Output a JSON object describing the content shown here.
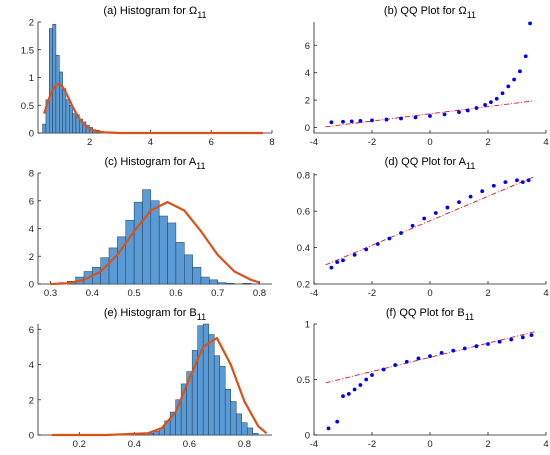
{
  "figure": {
    "colors": {
      "hist_fill": "#5b9bd5",
      "hist_edge": "#1f3a55",
      "pdf_line": "#d95319",
      "qq_points": "#0000ff",
      "qq_ref": "#e0141e"
    }
  },
  "chart_data": [
    {
      "type": "bar",
      "title": "(a) Histogram for Ω",
      "title_sub": "11",
      "xlim": [
        0.3,
        8
      ],
      "ylim": [
        0,
        2
      ],
      "xticks": [
        2,
        4,
        6,
        8
      ],
      "yticks": [
        0,
        0.5,
        1,
        1.5,
        2
      ],
      "ytick_labels": [
        "0",
        "0.5",
        "1",
        "1.5",
        "2"
      ],
      "bin_start": 0.45,
      "bin_width": 0.11,
      "values": [
        0.16,
        0.6,
        1.88,
        1.96,
        1.4,
        1.1,
        0.8,
        0.6,
        0.5,
        0.35,
        0.33,
        0.25,
        0.2,
        0.14,
        0.1,
        0.06,
        0.05,
        0.03,
        0.02,
        0.02
      ],
      "fit_curve": {
        "x": [
          0.5,
          0.6,
          0.7,
          0.8,
          0.9,
          1.0,
          1.1,
          1.2,
          1.3,
          1.4,
          1.5,
          1.6,
          1.8,
          2.0,
          2.2,
          2.5,
          3.0,
          4.0,
          6.0,
          7.7
        ],
        "y": [
          0.35,
          0.52,
          0.68,
          0.8,
          0.87,
          0.88,
          0.84,
          0.75,
          0.64,
          0.52,
          0.41,
          0.31,
          0.16,
          0.07,
          0.03,
          0.01,
          0.0,
          0.0,
          0.0,
          0.0
        ]
      }
    },
    {
      "type": "scatter",
      "title": "(b) QQ Plot for Ω",
      "title_sub": "11",
      "xlim": [
        -4,
        4
      ],
      "ylim": [
        -0.4,
        7.7
      ],
      "xticks": [
        -4,
        -2,
        0,
        2,
        4
      ],
      "yticks": [
        0,
        2,
        4,
        6
      ],
      "ytick_labels": [
        "0",
        "2",
        "4",
        "6"
      ],
      "points": {
        "x": [
          -3.4,
          -3.0,
          -2.7,
          -2.4,
          -2.0,
          -1.5,
          -1.0,
          -0.5,
          0.0,
          0.5,
          1.0,
          1.3,
          1.6,
          1.9,
          2.1,
          2.3,
          2.5,
          2.7,
          2.9,
          3.1,
          3.3,
          3.45
        ],
        "y": [
          0.38,
          0.42,
          0.45,
          0.48,
          0.52,
          0.58,
          0.66,
          0.74,
          0.84,
          0.96,
          1.12,
          1.24,
          1.42,
          1.65,
          1.85,
          2.1,
          2.5,
          3.0,
          3.5,
          4.1,
          5.2,
          7.6
        ]
      },
      "reference": {
        "x": [
          -3.6,
          3.6
        ],
        "y": [
          0.05,
          1.95
        ]
      }
    },
    {
      "type": "bar",
      "title": "(c) Histogram for A",
      "title_sub": "11",
      "xlim": [
        0.27,
        0.83
      ],
      "ylim": [
        0,
        8
      ],
      "xticks": [
        0.3,
        0.4,
        0.5,
        0.6,
        0.7,
        0.8
      ],
      "yticks": [
        0,
        2,
        4,
        6,
        8
      ],
      "ytick_labels": [
        "0",
        "2",
        "4",
        "6",
        "8"
      ],
      "bin_start": 0.3,
      "bin_width": 0.02,
      "values": [
        0.05,
        0.1,
        0.2,
        0.5,
        0.9,
        1.2,
        1.9,
        2.6,
        3.4,
        4.6,
        5.9,
        6.8,
        6.0,
        4.9,
        4.4,
        3.0,
        2.1,
        1.2,
        0.5,
        0.3,
        0.1,
        0.05,
        0.0,
        0.05,
        0.0
      ],
      "fit_curve": {
        "x": [
          0.3,
          0.34,
          0.38,
          0.42,
          0.46,
          0.5,
          0.54,
          0.58,
          0.62,
          0.66,
          0.7,
          0.74,
          0.78,
          0.8
        ],
        "y": [
          0.0,
          0.05,
          0.3,
          0.9,
          2.1,
          3.8,
          5.3,
          5.9,
          5.3,
          3.8,
          2.1,
          0.9,
          0.3,
          0.1
        ]
      }
    },
    {
      "type": "scatter",
      "title": "(d) QQ Plot for A",
      "title_sub": "11",
      "xlim": [
        -4,
        4
      ],
      "ylim": [
        0.2,
        0.81
      ],
      "xticks": [
        -4,
        -2,
        0,
        2,
        4
      ],
      "yticks": [
        0.2,
        0.4,
        0.6,
        0.8
      ],
      "ytick_labels": [
        "0.2",
        "0.4",
        "0.6",
        "0.8"
      ],
      "points": {
        "x": [
          -3.4,
          -3.2,
          -3.0,
          -2.6,
          -2.2,
          -1.8,
          -1.4,
          -1.0,
          -0.6,
          -0.2,
          0.2,
          0.6,
          1.0,
          1.4,
          1.8,
          2.2,
          2.6,
          3.0,
          3.2,
          3.4
        ],
        "y": [
          0.29,
          0.32,
          0.33,
          0.36,
          0.39,
          0.42,
          0.45,
          0.48,
          0.52,
          0.56,
          0.59,
          0.62,
          0.65,
          0.68,
          0.71,
          0.74,
          0.76,
          0.77,
          0.76,
          0.77
        ]
      },
      "reference": {
        "x": [
          -3.6,
          3.6
        ],
        "y": [
          0.305,
          0.79
        ]
      }
    },
    {
      "type": "bar",
      "title": "(e) Histogram for B",
      "title_sub": "11",
      "xlim": [
        0.05,
        0.9
      ],
      "ylim": [
        0,
        6.3
      ],
      "xticks": [
        0.2,
        0.4,
        0.6,
        0.8
      ],
      "yticks": [
        0,
        2,
        4,
        6
      ],
      "ytick_labels": [
        "0",
        "2",
        "4",
        "6"
      ],
      "bin_start": 0.45,
      "bin_width": 0.02,
      "values": [
        0.1,
        0.2,
        0.4,
        0.8,
        1.3,
        2.0,
        2.9,
        3.6,
        4.8,
        6.2,
        6.3,
        5.7,
        4.5,
        3.9,
        2.6,
        1.9,
        1.2,
        0.7,
        0.4,
        0.1
      ],
      "fit_curve": {
        "x": [
          0.1,
          0.3,
          0.45,
          0.5,
          0.55,
          0.6,
          0.65,
          0.7,
          0.75,
          0.8,
          0.85,
          0.88
        ],
        "y": [
          0.0,
          0.0,
          0.1,
          0.4,
          1.3,
          3.2,
          5.0,
          5.5,
          4.0,
          1.9,
          0.5,
          0.1
        ]
      }
    },
    {
      "type": "scatter",
      "title": "(f) QQ Plot for B",
      "title_sub": "11",
      "xlim": [
        -4,
        4
      ],
      "ylim": [
        0,
        1.0
      ],
      "xticks": [
        -4,
        -2,
        0,
        2,
        4
      ],
      "yticks": [
        0,
        0.5,
        1
      ],
      "ytick_labels": [
        "0",
        "0.5",
        "1"
      ],
      "points": {
        "x": [
          -3.5,
          -3.2,
          -3.0,
          -2.8,
          -2.6,
          -2.4,
          -2.2,
          -2.0,
          -1.6,
          -1.2,
          -0.8,
          -0.4,
          0.0,
          0.4,
          0.8,
          1.2,
          1.6,
          2.0,
          2.4,
          2.8,
          3.2,
          3.5
        ],
        "y": [
          0.06,
          0.12,
          0.35,
          0.37,
          0.41,
          0.45,
          0.5,
          0.54,
          0.59,
          0.63,
          0.66,
          0.69,
          0.71,
          0.74,
          0.76,
          0.78,
          0.8,
          0.82,
          0.84,
          0.86,
          0.88,
          0.9
        ]
      },
      "reference": {
        "x": [
          -3.6,
          3.6
        ],
        "y": [
          0.47,
          0.93
        ]
      }
    }
  ]
}
